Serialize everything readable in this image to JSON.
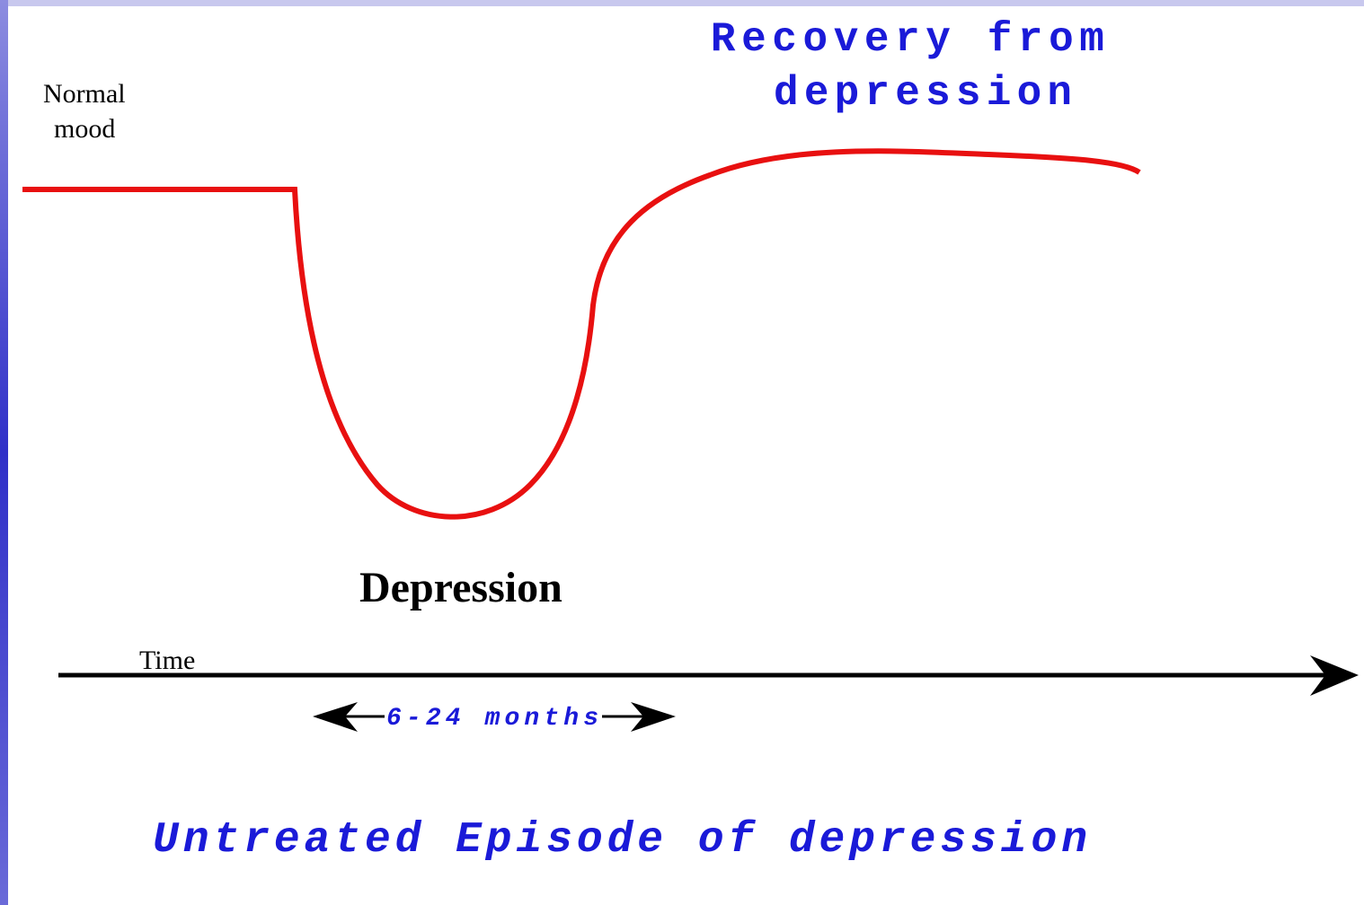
{
  "labels": {
    "normal_mood": [
      "Normal",
      "mood"
    ],
    "recovery": [
      "Recovery from",
      "depression"
    ],
    "depression": "Depression",
    "time": "Time",
    "duration": "6-24 months",
    "caption": "Untreated Episode of depression"
  }
}
